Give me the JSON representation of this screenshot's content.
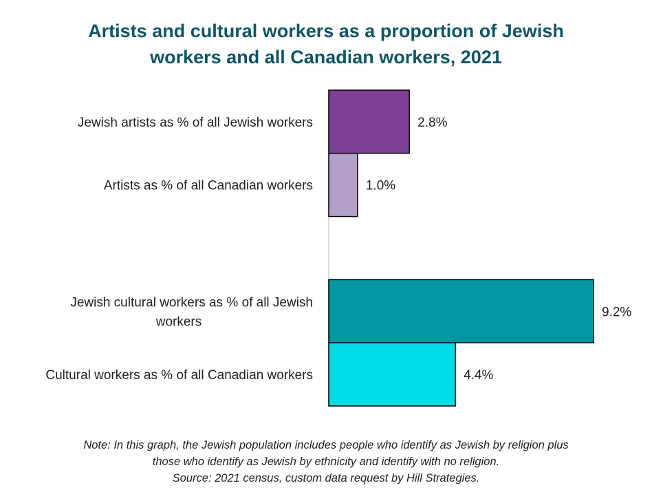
{
  "chart_data": {
    "type": "bar",
    "orientation": "horizontal",
    "title": [
      "Artists and cultural workers as a proportion of Jewish",
      "workers and all Canadian workers, 2021"
    ],
    "categories": [
      [
        "Jewish artists as % of all Jewish workers"
      ],
      [
        "Artists as % of all Canadian workers"
      ],
      [
        ""
      ],
      [
        "Jewish cultural workers as % of all Jewish",
        "workers"
      ],
      [
        "Cultural workers as % of all Canadian workers"
      ]
    ],
    "values": [
      2.8,
      1.0,
      null,
      9.2,
      4.4
    ],
    "value_labels": [
      "2.8%",
      "1.0%",
      "",
      "9.2%",
      "4.4%"
    ],
    "colors": [
      "#7d3f98",
      "#b3a1c8",
      "#ffffff",
      "#0097a0",
      "#00dce5"
    ],
    "xlim": [
      0,
      10
    ],
    "grid": false,
    "legend": "none"
  },
  "note": [
    "Note: In this graph, the Jewish population includes people who identify as Jewish by religion plus",
    "those who identify as Jewish by ethnicity and identify with no religion.",
    "Source: 2021 census, custom data request by Hill Strategies."
  ]
}
